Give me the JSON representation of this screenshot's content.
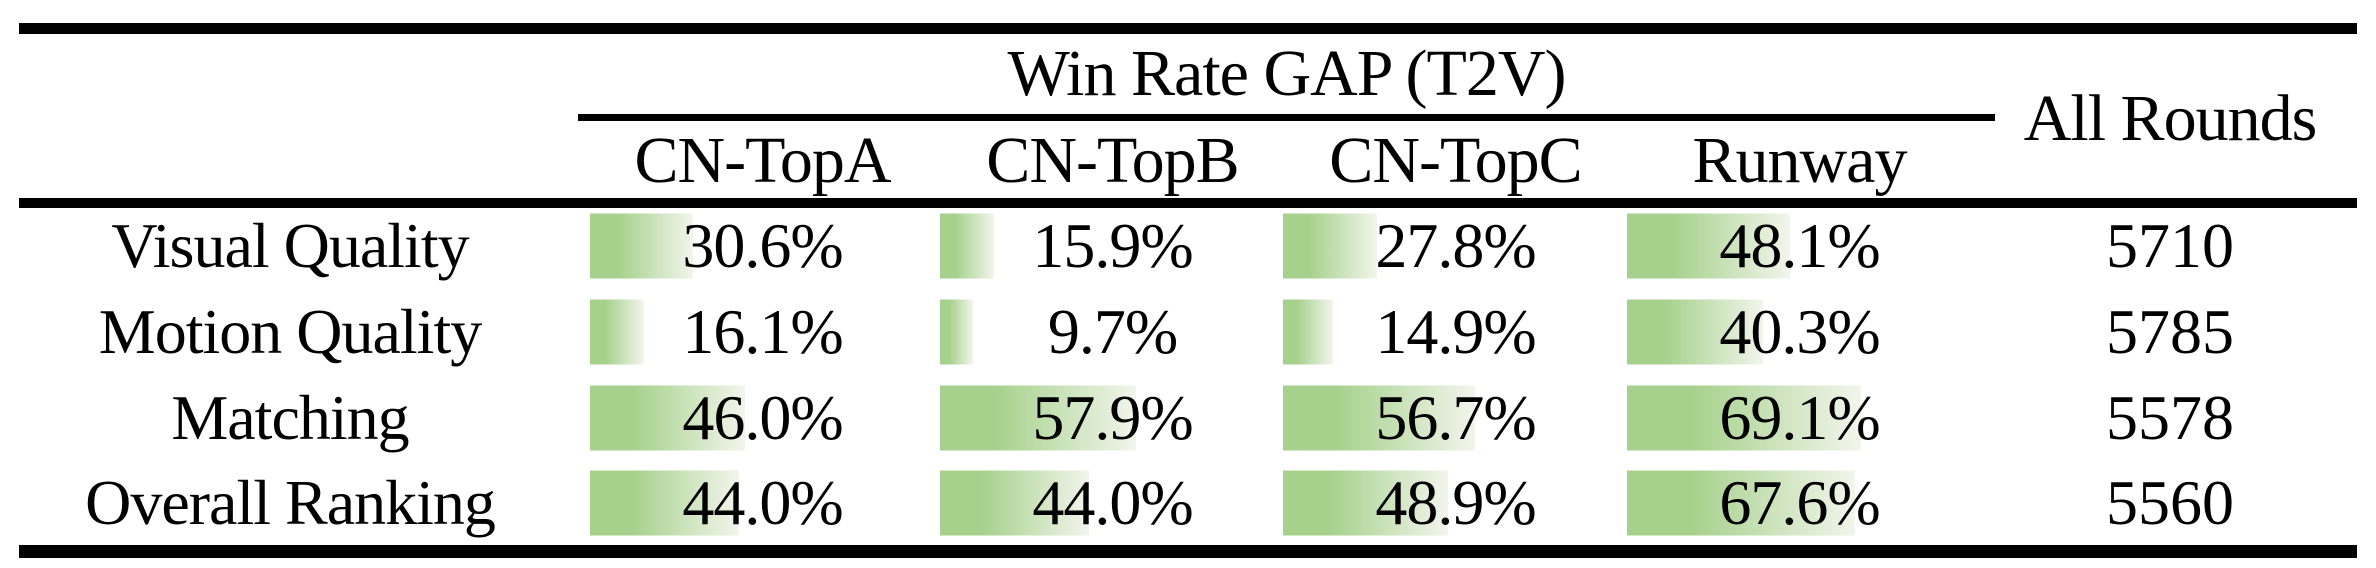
{
  "header": {
    "group_title": "Win Rate GAP (T2V)",
    "columns": [
      "CN-TopA",
      "CN-TopB",
      "CN-TopC",
      "Runway"
    ],
    "all_rounds": "All Rounds"
  },
  "rows": [
    {
      "label": "Visual Quality",
      "values": [
        30.6,
        15.9,
        27.8,
        48.1
      ],
      "display": [
        "30.6%",
        "15.9%",
        "27.8%",
        "48.1%"
      ],
      "all_rounds": "5710"
    },
    {
      "label": "Motion Quality",
      "values": [
        16.1,
        9.7,
        14.9,
        40.3
      ],
      "display": [
        "16.1%",
        "9.7%",
        "14.9%",
        "40.3%"
      ],
      "all_rounds": "5785"
    },
    {
      "label": "Matching",
      "values": [
        46.0,
        57.9,
        56.7,
        69.1
      ],
      "display": [
        "46.0%",
        "57.9%",
        "56.7%",
        "69.1%"
      ],
      "all_rounds": "5578"
    },
    {
      "label": "Overall Ranking",
      "values": [
        44.0,
        44.0,
        48.9,
        67.6
      ],
      "display": [
        "44.0%",
        "44.0%",
        "48.9%",
        "67.6%"
      ],
      "all_rounds": "5560"
    }
  ],
  "colors": {
    "bar_green": "#a6d18c",
    "bar_fade": "#f2f5ec",
    "rule_black": "#000000",
    "text_black": "#000000"
  },
  "chart_data": {
    "type": "table",
    "title": "Win Rate GAP (T2V)",
    "columns": [
      "CN-TopA",
      "CN-TopB",
      "CN-TopC",
      "Runway",
      "All Rounds"
    ],
    "row_labels": [
      "Visual Quality",
      "Motion Quality",
      "Matching",
      "Overall Ranking"
    ],
    "series": [
      {
        "name": "CN-TopA",
        "values": [
          30.6,
          16.1,
          46.0,
          44.0
        ]
      },
      {
        "name": "CN-TopB",
        "values": [
          15.9,
          9.7,
          57.9,
          44.0
        ]
      },
      {
        "name": "CN-TopC",
        "values": [
          27.8,
          14.9,
          56.7,
          48.9
        ]
      },
      {
        "name": "Runway",
        "values": [
          48.1,
          40.3,
          69.1,
          67.6
        ]
      }
    ],
    "all_rounds": [
      5710,
      5785,
      5578,
      5560
    ],
    "unit": "%",
    "bars": "green left-to-right gradient data bars, width proportional to percentage, rendered behind the numbers"
  }
}
